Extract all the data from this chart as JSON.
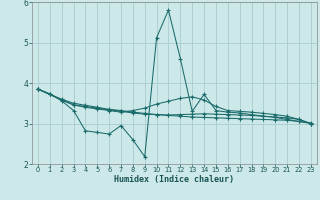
{
  "xlabel": "Humidex (Indice chaleur)",
  "bg_color": "#cce8e8",
  "grid_color": "#aacccc",
  "line_color": "#1a6b6b",
  "xlim": [
    -0.5,
    23.5
  ],
  "ylim": [
    2,
    6
  ],
  "yticks": [
    2,
    3,
    4,
    5,
    6
  ],
  "xticks": [
    0,
    1,
    2,
    3,
    4,
    5,
    6,
    7,
    8,
    9,
    10,
    11,
    12,
    13,
    14,
    15,
    16,
    17,
    18,
    19,
    20,
    21,
    22,
    23
  ],
  "series1_x": [
    0,
    1,
    2,
    3,
    4,
    5,
    6,
    7,
    8,
    9,
    10,
    11,
    12,
    13,
    14,
    15,
    16,
    17,
    18,
    19,
    20,
    21,
    22,
    23
  ],
  "series1_y": [
    3.85,
    3.72,
    3.6,
    3.5,
    3.45,
    3.4,
    3.35,
    3.32,
    3.28,
    3.25,
    3.22,
    3.2,
    3.18,
    3.16,
    3.15,
    3.14,
    3.13,
    3.12,
    3.11,
    3.1,
    3.09,
    3.08,
    3.05,
    3.01
  ],
  "series2_x": [
    0,
    1,
    2,
    3,
    4,
    5,
    6,
    7,
    8,
    9,
    10,
    11,
    12,
    13,
    14,
    15,
    16,
    17,
    18,
    19,
    20,
    21,
    22,
    23
  ],
  "series2_y": [
    3.85,
    3.73,
    3.58,
    3.46,
    3.42,
    3.38,
    3.34,
    3.3,
    3.26,
    3.23,
    3.22,
    3.21,
    3.22,
    3.23,
    3.24,
    3.23,
    3.22,
    3.21,
    3.2,
    3.18,
    3.16,
    3.14,
    3.1,
    3.0
  ],
  "series3_x": [
    0,
    2,
    3,
    4,
    5,
    6,
    7,
    8,
    9,
    10,
    11,
    12,
    13,
    14,
    15,
    16,
    17,
    18,
    19,
    20,
    21,
    22,
    23
  ],
  "series3_y": [
    3.85,
    3.58,
    3.46,
    3.4,
    3.36,
    3.32,
    3.28,
    3.32,
    3.38,
    3.48,
    3.55,
    3.62,
    3.66,
    3.58,
    3.42,
    3.32,
    3.3,
    3.28,
    3.25,
    3.22,
    3.18,
    3.1,
    3.0
  ],
  "series_spike_x": [
    0,
    1,
    2,
    3,
    4,
    5,
    6,
    7,
    8,
    9,
    10,
    11,
    12,
    13,
    14,
    15,
    16,
    17,
    18,
    19,
    20,
    21,
    22,
    23
  ],
  "series_spike_y": [
    3.85,
    3.73,
    3.56,
    3.32,
    2.82,
    2.78,
    2.74,
    2.95,
    2.6,
    2.18,
    5.12,
    5.8,
    4.6,
    3.3,
    3.72,
    3.32,
    3.28,
    3.26,
    3.22,
    3.18,
    3.15,
    3.1,
    3.05,
    3.0
  ]
}
